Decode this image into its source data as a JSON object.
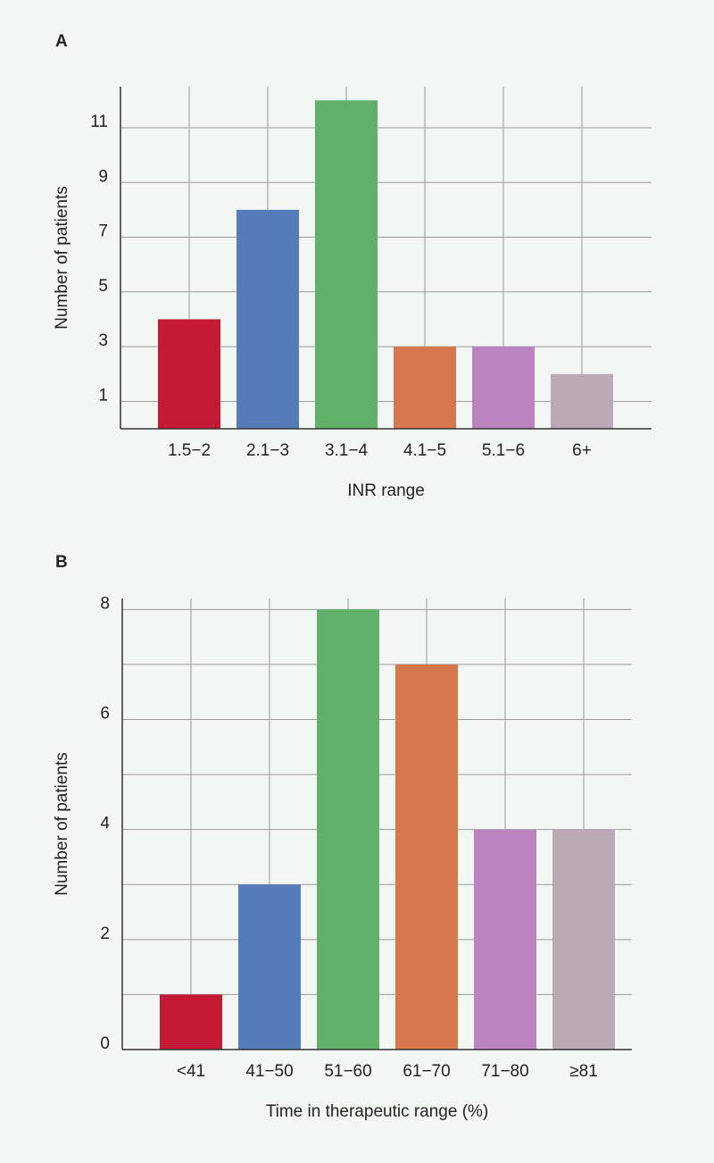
{
  "chart_data": [
    {
      "type": "bar",
      "panel_label": "A",
      "x_label": "INR range",
      "y_label": "Number of patients",
      "categories": [
        "1.5−2",
        "2.1−3",
        "3.1−4",
        "4.1−5",
        "5.1−6",
        "6+"
      ],
      "values": [
        4,
        8,
        12,
        3,
        3,
        2
      ],
      "colors": [
        "#c41a35",
        "#557cb8",
        "#62b16a",
        "#d6774d",
        "#bb84c1",
        "#bca9b6"
      ],
      "ylim": [
        0,
        12.5
      ],
      "yticks": [
        1,
        3,
        5,
        7,
        9,
        11
      ],
      "grid": true
    },
    {
      "type": "bar",
      "panel_label": "B",
      "x_label": "Time in therapeutic range (%)",
      "y_label": "Number of patients",
      "categories": [
        "<41",
        "41−50",
        "51−60",
        "61−70",
        "71−80",
        "≥81"
      ],
      "values": [
        1,
        3,
        8,
        7,
        4,
        4
      ],
      "colors": [
        "#c41a35",
        "#557cb8",
        "#62b16a",
        "#d6774d",
        "#bb84c1",
        "#bca9b6"
      ],
      "ylim": [
        0,
        8.2
      ],
      "yticks": [
        0,
        2,
        4,
        6,
        8
      ],
      "minor_yticks": [
        1,
        3,
        5,
        7
      ],
      "grid": true
    }
  ]
}
